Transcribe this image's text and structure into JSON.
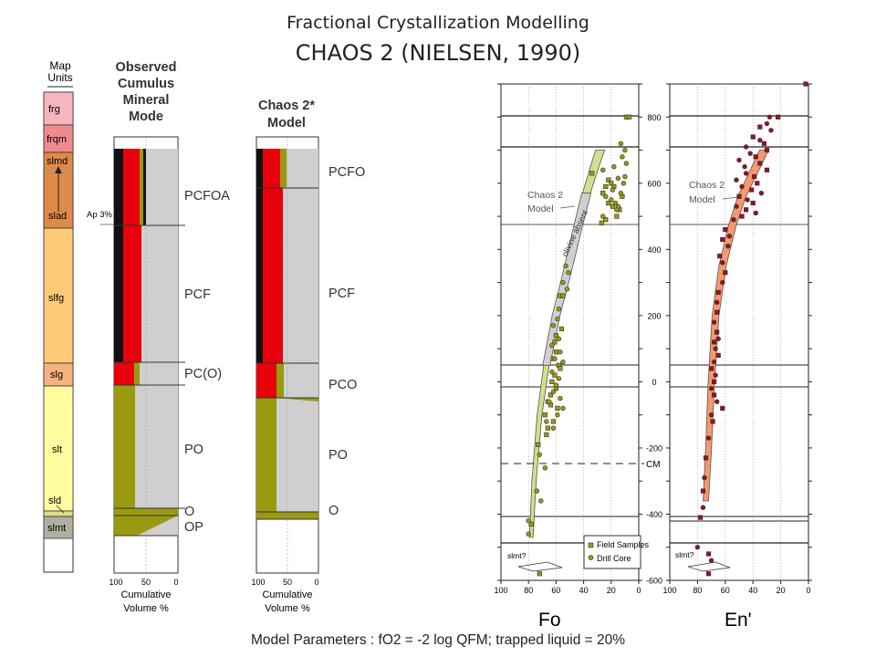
{
  "slide": {
    "title": "Fractional Crystallization Modelling",
    "subtitle": "CHAOS 2 (NIELSEN, 1990)",
    "footer": "Model Parameters :  fO2 = -2 log QFM; trapped liquid = 20%"
  },
  "colors": {
    "red": "#e8000b",
    "olive": "#9a9a10",
    "grey": "#cfcfcf",
    "black": "#111111",
    "fo_band": "#cfe08a",
    "en_band": "#f59a6e",
    "frg": "#f7b6be",
    "frqm": "#f08a8c",
    "slmd_slad": "#de8a4a",
    "slfg": "#fdcb78",
    "slg": "#f6b37f",
    "slt": "#fffca0",
    "sld": "#e2dd8a",
    "slmt": "#b0b0a0"
  },
  "map_units": {
    "header": "Map Units",
    "units": [
      "frg",
      "frqm",
      "slmd",
      "slad",
      "slfg",
      "slg",
      "slt",
      "sld",
      "slmt"
    ],
    "annotation": "Ap 3%"
  },
  "observed": {
    "header": "Observed Cumulus Mineral Mode",
    "zones": [
      "PCFOA",
      "PCF",
      "PC(O)",
      "PO",
      "O",
      "OP"
    ],
    "axis_label": "Cumulative Volume %",
    "ticks": [
      "100",
      "50",
      "0"
    ]
  },
  "model": {
    "header": "Chaos 2* Model",
    "zones": [
      "PCFO",
      "PCF",
      "PCO",
      "PO",
      "O"
    ],
    "axis_label": "Cumulative Volume %",
    "ticks": [
      "100",
      "50",
      "0"
    ]
  },
  "chart_data": [
    {
      "type": "scatter",
      "xlabel": "Fo",
      "xlim": [
        100,
        0
      ],
      "ylim": [
        -600,
        900
      ],
      "x_ticks": [
        "100",
        "80",
        "60",
        "40",
        "20",
        "0"
      ],
      "y_ticks": [
        "800",
        "600",
        "400",
        "200",
        "0",
        "-200",
        "-400",
        "-600"
      ],
      "annotations": [
        "Chaos 2 Model",
        "olivine absent",
        "slmt?",
        "CM"
      ],
      "legend": {
        "placement": "bottom-right",
        "entries": [
          "Field Samples",
          "Drill Core"
        ]
      },
      "series": [
        {
          "name": "Field Samples",
          "points": [
            [
              9,
              800
            ],
            [
              7,
              800
            ],
            [
              34,
              630
            ],
            [
              22,
              610
            ],
            [
              20,
              600
            ],
            [
              24,
              590
            ],
            [
              18,
              590
            ],
            [
              26,
              570
            ],
            [
              12,
              560
            ],
            [
              22,
              540
            ],
            [
              19,
              530
            ],
            [
              14,
              520
            ],
            [
              16,
              500
            ],
            [
              24,
              490
            ],
            [
              27,
              480
            ],
            [
              57,
              260
            ],
            [
              55,
              260
            ],
            [
              56,
              160
            ],
            [
              60,
              140
            ],
            [
              61,
              120
            ],
            [
              60,
              90
            ],
            [
              62,
              70
            ],
            [
              58,
              50
            ],
            [
              57,
              40
            ],
            [
              61,
              20
            ],
            [
              63,
              0
            ],
            [
              60,
              -20
            ],
            [
              64,
              -40
            ],
            [
              66,
              -60
            ],
            [
              64,
              -70
            ],
            [
              59,
              -80
            ],
            [
              68,
              -100
            ],
            [
              62,
              -120
            ],
            [
              66,
              -140
            ],
            [
              67,
              -160
            ],
            [
              73,
              -190
            ],
            [
              78,
              -430
            ],
            [
              72,
              -580
            ]
          ]
        },
        {
          "name": "Drill Core",
          "points": [
            [
              13,
              720
            ],
            [
              10,
              700
            ],
            [
              12,
              680
            ],
            [
              9,
              660
            ],
            [
              18,
              650
            ],
            [
              26,
              640
            ],
            [
              10,
              620
            ],
            [
              15,
              615
            ],
            [
              11,
              600
            ],
            [
              19,
              580
            ],
            [
              13,
              570
            ],
            [
              24,
              560
            ],
            [
              20,
              550
            ],
            [
              17,
              540
            ],
            [
              15,
              530
            ],
            [
              16,
              520
            ],
            [
              26,
              500
            ],
            [
              53,
              350
            ],
            [
              51,
              330
            ],
            [
              55,
              300
            ],
            [
              52,
              280
            ],
            [
              58,
              220
            ],
            [
              59,
              190
            ],
            [
              62,
              170
            ],
            [
              58,
              130
            ],
            [
              63,
              110
            ],
            [
              57,
              90
            ],
            [
              61,
              70
            ],
            [
              55,
              60
            ],
            [
              63,
              30
            ],
            [
              58,
              10
            ],
            [
              60,
              -10
            ],
            [
              62,
              -30
            ],
            [
              57,
              -50
            ],
            [
              65,
              -60
            ],
            [
              55,
              -80
            ],
            [
              59,
              -100
            ],
            [
              67,
              -120
            ],
            [
              62,
              -140
            ],
            [
              72,
              -220
            ],
            [
              68,
              -260
            ],
            [
              74,
              -330
            ],
            [
              71,
              -360
            ],
            [
              80,
              -420
            ],
            [
              80,
              -460
            ]
          ]
        },
        {
          "name": "Chaos 2 Model",
          "points": [
            [
              78,
              -470
            ],
            [
              76,
              -300
            ],
            [
              72,
              -100
            ],
            [
              67,
              50
            ],
            [
              60,
              200
            ],
            [
              52,
              330
            ],
            [
              44,
              470
            ],
            [
              38,
              570
            ],
            [
              32,
              650
            ],
            [
              28,
              700
            ]
          ]
        }
      ]
    },
    {
      "type": "scatter",
      "xlabel": "En'",
      "xlim": [
        100,
        0
      ],
      "ylim": [
        -600,
        900
      ],
      "x_ticks": [
        "100",
        "80",
        "60",
        "40",
        "20",
        "0"
      ],
      "y_ticks": [],
      "annotations": [
        "Chaos 2 Model",
        "slmt?"
      ],
      "series": [
        {
          "name": "Samples",
          "points": [
            [
              2,
              900
            ],
            [
              28,
              800
            ],
            [
              22,
              800
            ],
            [
              30,
              780
            ],
            [
              35,
              770
            ],
            [
              27,
              760
            ],
            [
              40,
              740
            ],
            [
              35,
              730
            ],
            [
              32,
              720
            ],
            [
              45,
              710
            ],
            [
              30,
              700
            ],
            [
              42,
              690
            ],
            [
              38,
              680
            ],
            [
              50,
              670
            ],
            [
              35,
              660
            ],
            [
              46,
              650
            ],
            [
              30,
              640
            ],
            [
              45,
              630
            ],
            [
              39,
              620
            ],
            [
              52,
              610
            ],
            [
              37,
              600
            ],
            [
              48,
              590
            ],
            [
              41,
              580
            ],
            [
              34,
              570
            ],
            [
              50,
              560
            ],
            [
              44,
              550
            ],
            [
              40,
              540
            ],
            [
              52,
              530
            ],
            [
              45,
              520
            ],
            [
              38,
              510
            ],
            [
              48,
              500
            ],
            [
              54,
              490
            ],
            [
              60,
              460
            ],
            [
              57,
              440
            ],
            [
              62,
              430
            ],
            [
              58,
              410
            ],
            [
              64,
              380
            ],
            [
              62,
              360
            ],
            [
              60,
              330
            ],
            [
              62,
              300
            ],
            [
              65,
              270
            ],
            [
              66,
              240
            ],
            [
              66,
              210
            ],
            [
              68,
              180
            ],
            [
              66,
              150
            ],
            [
              65,
              130
            ],
            [
              68,
              120
            ],
            [
              67,
              100
            ],
            [
              65,
              80
            ],
            [
              68,
              60
            ],
            [
              70,
              40
            ],
            [
              67,
              20
            ],
            [
              68,
              0
            ],
            [
              70,
              -20
            ],
            [
              68,
              -40
            ],
            [
              66,
              -60
            ],
            [
              62,
              -80
            ],
            [
              70,
              -100
            ],
            [
              69,
              -120
            ],
            [
              72,
              -170
            ],
            [
              74,
              -230
            ],
            [
              75,
              -290
            ],
            [
              76,
              -330
            ],
            [
              76,
              -380
            ],
            [
              78,
              -410
            ],
            [
              80,
              -500
            ],
            [
              72,
              -520
            ],
            [
              70,
              -540
            ],
            [
              72,
              -580
            ]
          ]
        },
        {
          "name": "Chaos 2 Model",
          "points": [
            [
              74,
              -360
            ],
            [
              72,
              -200
            ],
            [
              70,
              0
            ],
            [
              67,
              200
            ],
            [
              62,
              350
            ],
            [
              55,
              470
            ],
            [
              48,
              560
            ],
            [
              40,
              630
            ],
            [
              32,
              700
            ]
          ]
        }
      ]
    }
  ]
}
